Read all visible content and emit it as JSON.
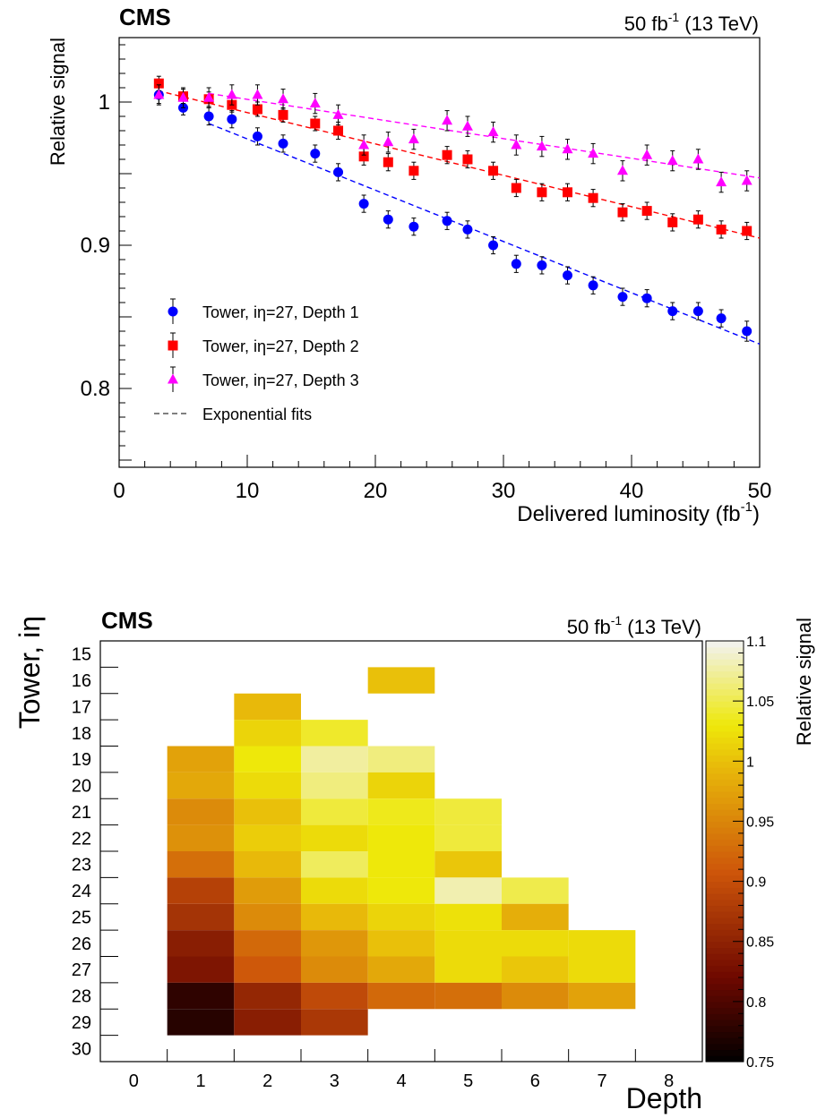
{
  "chart_data": [
    {
      "type": "scatter",
      "experiment": "CMS",
      "lumi_label": "50 fb",
      "lumi_sup": "-1",
      "energy_label": " (13 TeV)",
      "xlabel": "Delivered luminosity (fb",
      "xlabel_sup": "-1",
      "xlabel_end": ")",
      "ylabel": "Relative signal",
      "xlim": [
        0,
        50
      ],
      "ylim": [
        0.745,
        1.045
      ],
      "xticks": [
        "0",
        "10",
        "20",
        "30",
        "40",
        "50"
      ],
      "yticks": [
        "0.8",
        "0.9",
        "1"
      ],
      "legend_position": "bottom-left",
      "legend_fit_label": "Exponential fits",
      "series": [
        {
          "name": "Tower, iη=27, Depth 1",
          "color": "#0000ff",
          "marker": "circle",
          "x": [
            3.1,
            5.0,
            7.0,
            8.8,
            10.8,
            12.8,
            15.3,
            17.1,
            19.1,
            21.0,
            23.0,
            25.6,
            27.2,
            29.2,
            31.0,
            33.0,
            35.0,
            37.0,
            39.3,
            41.2,
            43.2,
            45.2,
            47.0,
            49.0
          ],
          "y": [
            1.005,
            0.996,
            0.99,
            0.988,
            0.976,
            0.971,
            0.964,
            0.951,
            0.929,
            0.918,
            0.913,
            0.917,
            0.911,
            0.9,
            0.887,
            0.886,
            0.879,
            0.872,
            0.864,
            0.863,
            0.854,
            0.854,
            0.849,
            0.84
          ],
          "err": [
            0.006,
            0.005,
            0.006,
            0.006,
            0.006,
            0.006,
            0.006,
            0.006,
            0.006,
            0.006,
            0.006,
            0.006,
            0.006,
            0.006,
            0.006,
            0.006,
            0.006,
            0.006,
            0.006,
            0.006,
            0.006,
            0.006,
            0.006,
            0.007
          ],
          "fit": {
            "x": [
              7.0,
              50.0
            ],
            "y": [
              0.985,
              0.831
            ]
          }
        },
        {
          "name": "Tower, iη=27, Depth 2",
          "color": "#ff0000",
          "marker": "square",
          "x": [
            3.1,
            5.0,
            7.0,
            8.8,
            10.8,
            12.8,
            15.3,
            17.1,
            19.1,
            21.0,
            23.0,
            25.6,
            27.2,
            29.2,
            31.0,
            33.0,
            35.0,
            37.0,
            39.3,
            41.2,
            43.2,
            45.2,
            47.0,
            49.0
          ],
          "y": [
            1.013,
            1.004,
            1.002,
            0.998,
            0.995,
            0.991,
            0.985,
            0.98,
            0.962,
            0.958,
            0.952,
            0.963,
            0.96,
            0.952,
            0.94,
            0.937,
            0.937,
            0.933,
            0.923,
            0.924,
            0.916,
            0.918,
            0.911,
            0.91
          ],
          "err": [
            0.005,
            0.005,
            0.005,
            0.005,
            0.005,
            0.005,
            0.005,
            0.006,
            0.006,
            0.006,
            0.006,
            0.006,
            0.006,
            0.006,
            0.006,
            0.006,
            0.006,
            0.006,
            0.006,
            0.006,
            0.006,
            0.006,
            0.006,
            0.006
          ],
          "fit": {
            "x": [
              3.0,
              50.0
            ],
            "y": [
              1.008,
              0.905
            ]
          }
        },
        {
          "name": "Tower, iη=27, Depth 3",
          "color": "#ff00ff",
          "marker": "triangle",
          "x": [
            3.1,
            5.0,
            7.0,
            8.8,
            10.8,
            12.8,
            15.3,
            17.1,
            19.1,
            21.0,
            23.0,
            25.6,
            27.2,
            29.2,
            31.0,
            33.0,
            35.0,
            37.0,
            39.3,
            41.2,
            43.2,
            45.2,
            47.0,
            49.0
          ],
          "y": [
            1.005,
            1.003,
            1.003,
            1.005,
            1.005,
            1.002,
            0.999,
            0.991,
            0.97,
            0.972,
            0.974,
            0.987,
            0.983,
            0.979,
            0.97,
            0.969,
            0.967,
            0.964,
            0.952,
            0.963,
            0.959,
            0.96,
            0.944,
            0.945
          ],
          "err": [
            0.007,
            0.007,
            0.007,
            0.007,
            0.007,
            0.007,
            0.007,
            0.007,
            0.007,
            0.007,
            0.007,
            0.007,
            0.007,
            0.007,
            0.007,
            0.007,
            0.007,
            0.007,
            0.007,
            0.007,
            0.007,
            0.007,
            0.007,
            0.007
          ],
          "fit": {
            "x": [
              7.0,
              50.0
            ],
            "y": [
              1.006,
              0.947
            ]
          }
        }
      ]
    },
    {
      "type": "heatmap",
      "experiment": "CMS",
      "lumi_label": "50 fb",
      "lumi_sup": "-1",
      "energy_label": " (13 TeV)",
      "xlabel": "Depth",
      "ylabel": "Tower, iη",
      "zlabel": "Relative signal",
      "xticks": [
        "0",
        "1",
        "2",
        "3",
        "4",
        "5",
        "6",
        "7",
        "8"
      ],
      "yticks": [
        "15",
        "16",
        "17",
        "18",
        "19",
        "20",
        "21",
        "22",
        "23",
        "24",
        "25",
        "26",
        "27",
        "28",
        "29",
        "30"
      ],
      "zlim": [
        0.75,
        1.1
      ],
      "zticks": [
        "0.75",
        "0.8",
        "0.85",
        "0.9",
        "0.95",
        "1",
        "1.05",
        "1.1"
      ],
      "cells": [
        {
          "ieta": 16,
          "depth": 4,
          "value": 1.0
        },
        {
          "ieta": 17,
          "depth": 2,
          "value": 0.995
        },
        {
          "ieta": 18,
          "depth": 2,
          "value": 1.015
        },
        {
          "ieta": 18,
          "depth": 3,
          "value": 1.04
        },
        {
          "ieta": 19,
          "depth": 1,
          "value": 0.975
        },
        {
          "ieta": 19,
          "depth": 2,
          "value": 1.03
        },
        {
          "ieta": 19,
          "depth": 3,
          "value": 1.075
        },
        {
          "ieta": 19,
          "depth": 4,
          "value": 1.065
        },
        {
          "ieta": 20,
          "depth": 1,
          "value": 0.98
        },
        {
          "ieta": 20,
          "depth": 2,
          "value": 1.02
        },
        {
          "ieta": 20,
          "depth": 3,
          "value": 1.065
        },
        {
          "ieta": 20,
          "depth": 4,
          "value": 1.015
        },
        {
          "ieta": 21,
          "depth": 1,
          "value": 0.955
        },
        {
          "ieta": 21,
          "depth": 2,
          "value": 1.0
        },
        {
          "ieta": 21,
          "depth": 3,
          "value": 1.045
        },
        {
          "ieta": 21,
          "depth": 4,
          "value": 1.035
        },
        {
          "ieta": 21,
          "depth": 5,
          "value": 1.045
        },
        {
          "ieta": 22,
          "depth": 1,
          "value": 0.96
        },
        {
          "ieta": 22,
          "depth": 2,
          "value": 1.01
        },
        {
          "ieta": 22,
          "depth": 3,
          "value": 1.02
        },
        {
          "ieta": 22,
          "depth": 4,
          "value": 1.03
        },
        {
          "ieta": 22,
          "depth": 5,
          "value": 1.045
        },
        {
          "ieta": 23,
          "depth": 1,
          "value": 0.93
        },
        {
          "ieta": 23,
          "depth": 2,
          "value": 0.995
        },
        {
          "ieta": 23,
          "depth": 3,
          "value": 1.055
        },
        {
          "ieta": 23,
          "depth": 4,
          "value": 1.03
        },
        {
          "ieta": 23,
          "depth": 5,
          "value": 1.005
        },
        {
          "ieta": 24,
          "depth": 1,
          "value": 0.885
        },
        {
          "ieta": 24,
          "depth": 2,
          "value": 0.97
        },
        {
          "ieta": 24,
          "depth": 3,
          "value": 1.02
        },
        {
          "ieta": 24,
          "depth": 4,
          "value": 1.03
        },
        {
          "ieta": 24,
          "depth": 5,
          "value": 1.08
        },
        {
          "ieta": 24,
          "depth": 6,
          "value": 1.05
        },
        {
          "ieta": 25,
          "depth": 1,
          "value": 0.87
        },
        {
          "ieta": 25,
          "depth": 2,
          "value": 0.955
        },
        {
          "ieta": 25,
          "depth": 3,
          "value": 0.995
        },
        {
          "ieta": 25,
          "depth": 4,
          "value": 1.015
        },
        {
          "ieta": 25,
          "depth": 5,
          "value": 1.025
        },
        {
          "ieta": 25,
          "depth": 6,
          "value": 0.985
        },
        {
          "ieta": 26,
          "depth": 1,
          "value": 0.845
        },
        {
          "ieta": 26,
          "depth": 2,
          "value": 0.925
        },
        {
          "ieta": 26,
          "depth": 3,
          "value": 0.965
        },
        {
          "ieta": 26,
          "depth": 4,
          "value": 1.0
        },
        {
          "ieta": 26,
          "depth": 5,
          "value": 1.02
        },
        {
          "ieta": 26,
          "depth": 6,
          "value": 1.02
        },
        {
          "ieta": 26,
          "depth": 7,
          "value": 1.02
        },
        {
          "ieta": 27,
          "depth": 1,
          "value": 0.835
        },
        {
          "ieta": 27,
          "depth": 2,
          "value": 0.91
        },
        {
          "ieta": 27,
          "depth": 3,
          "value": 0.955
        },
        {
          "ieta": 27,
          "depth": 4,
          "value": 0.98
        },
        {
          "ieta": 27,
          "depth": 5,
          "value": 1.02
        },
        {
          "ieta": 27,
          "depth": 6,
          "value": 1.005
        },
        {
          "ieta": 27,
          "depth": 7,
          "value": 1.02
        },
        {
          "ieta": 28,
          "depth": 1,
          "value": 0.78
        },
        {
          "ieta": 28,
          "depth": 2,
          "value": 0.855
        },
        {
          "ieta": 28,
          "depth": 3,
          "value": 0.895
        },
        {
          "ieta": 28,
          "depth": 4,
          "value": 0.925
        },
        {
          "ieta": 28,
          "depth": 5,
          "value": 0.93
        },
        {
          "ieta": 28,
          "depth": 6,
          "value": 0.955
        },
        {
          "ieta": 28,
          "depth": 7,
          "value": 0.975
        },
        {
          "ieta": 29,
          "depth": 1,
          "value": 0.775
        },
        {
          "ieta": 29,
          "depth": 2,
          "value": 0.845
        },
        {
          "ieta": 29,
          "depth": 3,
          "value": 0.875
        }
      ]
    }
  ]
}
